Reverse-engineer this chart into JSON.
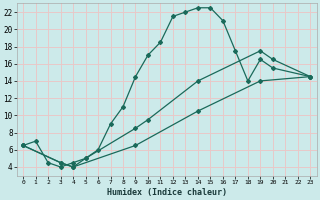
{
  "xlabel": "Humidex (Indice chaleur)",
  "bg_color": "#cceaea",
  "grid_color": "#e8c8c8",
  "line_color": "#1a6a5a",
  "xlim": [
    -0.5,
    23.5
  ],
  "ylim": [
    3,
    23
  ],
  "yticks": [
    4,
    6,
    8,
    10,
    12,
    14,
    16,
    18,
    20,
    22
  ],
  "xticks": [
    0,
    1,
    2,
    3,
    4,
    5,
    6,
    7,
    8,
    9,
    10,
    11,
    12,
    13,
    14,
    15,
    16,
    17,
    18,
    19,
    20,
    21,
    22,
    23
  ],
  "line1_x": [
    0,
    1,
    2,
    3,
    4,
    5,
    6,
    7,
    8,
    9,
    10,
    11,
    12,
    13,
    14,
    15,
    16,
    17,
    18,
    19,
    20,
    23
  ],
  "line1_y": [
    6.5,
    7.0,
    4.5,
    4.0,
    4.5,
    5.0,
    6.0,
    9.0,
    11.0,
    14.5,
    17.0,
    18.5,
    21.5,
    22.0,
    22.5,
    22.5,
    21.0,
    17.5,
    14.0,
    16.5,
    15.5,
    14.5
  ],
  "line2_x": [
    0,
    3,
    4,
    5,
    9,
    10,
    14,
    19,
    20,
    23
  ],
  "line2_y": [
    6.5,
    4.5,
    4.0,
    5.0,
    8.5,
    9.5,
    14.0,
    17.5,
    16.5,
    14.5
  ],
  "line3_x": [
    0,
    3,
    4,
    9,
    14,
    19,
    23
  ],
  "line3_y": [
    6.5,
    4.5,
    4.0,
    6.5,
    10.5,
    14.0,
    14.5
  ]
}
